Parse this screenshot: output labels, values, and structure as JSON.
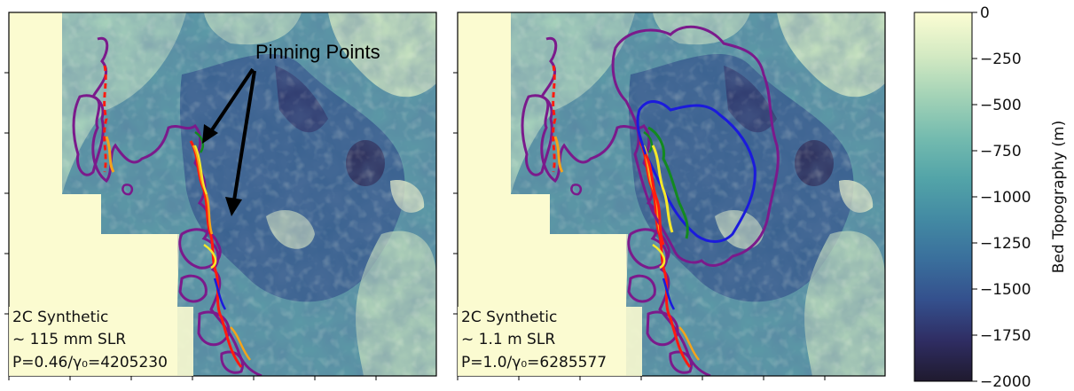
{
  "chart_data": {
    "type": "heatmap",
    "panels": [
      {
        "name": "left",
        "labels": [
          "2C Synthetic",
          "~ 115 mm SLR",
          "P=0.46/γ₀=4205230"
        ],
        "annotation": "Pinning Points"
      },
      {
        "name": "right",
        "labels": [
          "2C Synthetic",
          "~ 1.1 m SLR",
          "P=1.0/γ₀=6285577"
        ]
      }
    ],
    "colorbar": {
      "label": "Bed Topography (m)",
      "range": [
        -2000,
        0
      ],
      "ticks": [
        0,
        -250,
        -500,
        -750,
        -1000,
        -1250,
        -1500,
        -1750,
        -2000
      ],
      "tick_labels": [
        "0",
        "−250",
        "−500",
        "−750",
        "−1000",
        "−1250",
        "−1500",
        "−1750",
        "−2000"
      ],
      "colormap": [
        "#1f1a2e",
        "#2f2d63",
        "#34508d",
        "#3a6f9c",
        "#438aa3",
        "#53a4a8",
        "#74bbaf",
        "#a2d2b6",
        "#d2e9c2",
        "#fcfdd3"
      ]
    },
    "contour_colors": {
      "purple": "#7b1a8b",
      "red": "#ff1b10",
      "orange": "#f5a31a",
      "yellow": "#f5e82a",
      "green": "#138a20",
      "blue": "#1b1bdc"
    }
  }
}
